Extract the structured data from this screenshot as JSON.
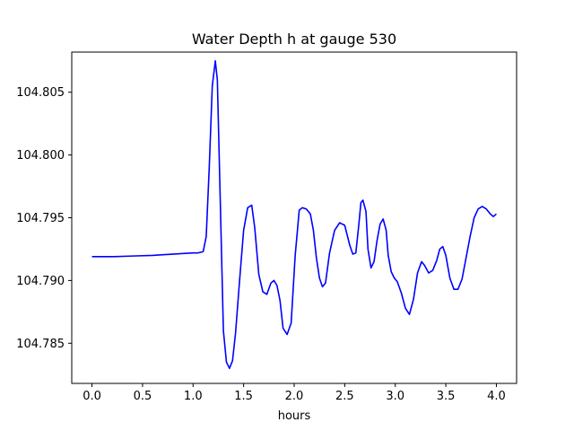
{
  "chart_data": {
    "type": "line",
    "title": "Water Depth h at gauge 530",
    "xlabel": "hours",
    "ylabel": "",
    "xlim": [
      -0.2,
      4.2
    ],
    "ylim": [
      104.7818,
      104.8082
    ],
    "xticks": [
      0.0,
      0.5,
      1.0,
      1.5,
      2.0,
      2.5,
      3.0,
      3.5,
      4.0
    ],
    "xtick_labels": [
      "0.0",
      "0.5",
      "1.0",
      "1.5",
      "2.0",
      "2.5",
      "3.0",
      "3.5",
      "4.0"
    ],
    "yticks": [
      104.785,
      104.79,
      104.795,
      104.8,
      104.805
    ],
    "ytick_labels": [
      "104.785",
      "104.790",
      "104.795",
      "104.800",
      "104.805"
    ],
    "grid": false,
    "series": [
      {
        "color": "#0000ff",
        "x": [
          0.0,
          0.2,
          0.4,
          0.6,
          0.7,
          0.8,
          0.9,
          1.0,
          1.05,
          1.1,
          1.13,
          1.16,
          1.19,
          1.22,
          1.24,
          1.27,
          1.3,
          1.33,
          1.36,
          1.39,
          1.42,
          1.46,
          1.5,
          1.54,
          1.58,
          1.61,
          1.65,
          1.69,
          1.73,
          1.77,
          1.8,
          1.83,
          1.86,
          1.89,
          1.93,
          1.97,
          2.01,
          2.05,
          2.08,
          2.12,
          2.16,
          2.19,
          2.22,
          2.25,
          2.28,
          2.31,
          2.35,
          2.4,
          2.45,
          2.5,
          2.55,
          2.58,
          2.61,
          2.64,
          2.66,
          2.68,
          2.71,
          2.73,
          2.76,
          2.79,
          2.82,
          2.85,
          2.88,
          2.91,
          2.93,
          2.96,
          2.99,
          3.02,
          3.06,
          3.1,
          3.14,
          3.18,
          3.22,
          3.26,
          3.29,
          3.33,
          3.37,
          3.41,
          3.44,
          3.47,
          3.5,
          3.54,
          3.58,
          3.62,
          3.66,
          3.7,
          3.74,
          3.78,
          3.82,
          3.86,
          3.9,
          3.94,
          3.97,
          4.0
        ],
        "y": [
          104.7919,
          104.7919,
          104.79195,
          104.792,
          104.79205,
          104.7921,
          104.79215,
          104.7922,
          104.7922,
          104.7923,
          104.7935,
          104.799,
          104.8055,
          104.8075,
          104.806,
          104.796,
          104.786,
          104.7835,
          104.783,
          104.7836,
          104.7858,
          104.79,
          104.794,
          104.7958,
          104.796,
          104.7942,
          104.7905,
          104.7891,
          104.7889,
          104.7898,
          104.79,
          104.7896,
          104.7884,
          104.7862,
          104.7857,
          104.7866,
          104.792,
          104.7956,
          104.7958,
          104.7957,
          104.7953,
          104.794,
          104.7918,
          104.7902,
          104.7895,
          104.7898,
          104.7922,
          104.794,
          104.7946,
          104.7944,
          104.7928,
          104.7921,
          104.7922,
          104.7945,
          104.7962,
          104.7964,
          104.7955,
          104.7925,
          104.791,
          104.7915,
          104.7932,
          104.7945,
          104.7949,
          104.794,
          104.792,
          104.7907,
          104.7902,
          104.7899,
          104.789,
          104.7878,
          104.7873,
          104.7885,
          104.7906,
          104.7915,
          104.7912,
          104.7906,
          104.7908,
          104.7916,
          104.7925,
          104.7927,
          104.792,
          104.7902,
          104.7893,
          104.7893,
          104.7901,
          104.7918,
          104.7935,
          104.795,
          104.7957,
          104.7959,
          104.7957,
          104.7953,
          104.7951,
          104.7953
        ]
      }
    ]
  }
}
